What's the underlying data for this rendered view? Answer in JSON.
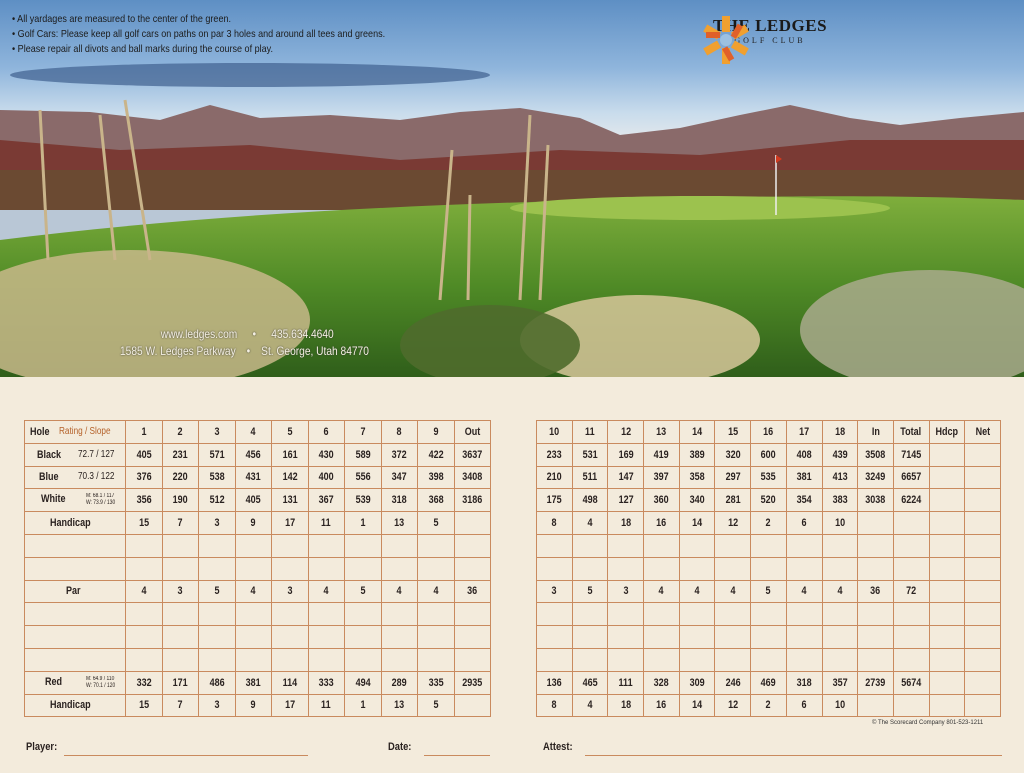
{
  "notes": [
    "All yardages are measured to the center of the green.",
    "Golf Cars:  Please keep all golf cars on paths on par 3 holes and around all tees and greens.",
    "Please repair all divots and ball marks during the course of play."
  ],
  "logo": {
    "name": "THE LEDGES",
    "subtitle": "GOLF CLUB"
  },
  "contact": {
    "website": "www.ledges.com",
    "phone": "435.634.4640",
    "address": "1585 W. Ledges Parkway",
    "city": "St. George, Utah  84770"
  },
  "colors": {
    "accent": "#b5622a",
    "grid": "#c98a5e",
    "paper": "#f3ebdc"
  },
  "front": {
    "header": {
      "label": "Hole",
      "rating": "Rating / Slope",
      "cells": [
        "1",
        "2",
        "3",
        "4",
        "5",
        "6",
        "7",
        "8",
        "9",
        "Out"
      ]
    },
    "rows": [
      {
        "label": "Black",
        "rating": "72.7 / 127",
        "cells": [
          "405",
          "231",
          "571",
          "456",
          "161",
          "430",
          "589",
          "372",
          "422",
          "3637"
        ]
      },
      {
        "label": "Blue",
        "rating": "70.3 / 122",
        "cells": [
          "376",
          "220",
          "538",
          "431",
          "142",
          "400",
          "556",
          "347",
          "398",
          "3408"
        ]
      },
      {
        "label": "White",
        "rating_m": "M: 68.1 / 117",
        "rating_w": "W: 73.9 / 130",
        "cells": [
          "356",
          "190",
          "512",
          "405",
          "131",
          "367",
          "539",
          "318",
          "368",
          "3186"
        ]
      },
      {
        "label": "Handicap",
        "cells": [
          "15",
          "7",
          "3",
          "9",
          "17",
          "11",
          "1",
          "13",
          "5",
          ""
        ]
      },
      {
        "label": "",
        "cells": [
          "",
          "",
          "",
          "",
          "",
          "",
          "",
          "",
          "",
          ""
        ]
      },
      {
        "label": "",
        "cells": [
          "",
          "",
          "",
          "",
          "",
          "",
          "",
          "",
          "",
          ""
        ]
      },
      {
        "label": "Par",
        "par": true,
        "cells": [
          "4",
          "3",
          "5",
          "4",
          "3",
          "4",
          "5",
          "4",
          "4",
          "36"
        ]
      },
      {
        "label": "",
        "cells": [
          "",
          "",
          "",
          "",
          "",
          "",
          "",
          "",
          "",
          ""
        ]
      },
      {
        "label": "",
        "cells": [
          "",
          "",
          "",
          "",
          "",
          "",
          "",
          "",
          "",
          ""
        ]
      },
      {
        "label": "",
        "cells": [
          "",
          "",
          "",
          "",
          "",
          "",
          "",
          "",
          "",
          ""
        ]
      },
      {
        "label": "Red",
        "rating_m": "M: 64.9 / 110",
        "rating_w": "W: 70.1 / 120",
        "cells": [
          "332",
          "171",
          "486",
          "381",
          "114",
          "333",
          "494",
          "289",
          "335",
          "2935"
        ]
      },
      {
        "label": "Handicap",
        "cells": [
          "15",
          "7",
          "3",
          "9",
          "17",
          "11",
          "1",
          "13",
          "5",
          ""
        ]
      }
    ]
  },
  "back": {
    "header": {
      "cells": [
        "10",
        "11",
        "12",
        "13",
        "14",
        "15",
        "16",
        "17",
        "18",
        "In",
        "Total",
        "Hdcp",
        "Net"
      ]
    },
    "rows": [
      {
        "cells": [
          "233",
          "531",
          "169",
          "419",
          "389",
          "320",
          "600",
          "408",
          "439",
          "3508",
          "7145",
          "",
          ""
        ]
      },
      {
        "cells": [
          "210",
          "511",
          "147",
          "397",
          "358",
          "297",
          "535",
          "381",
          "413",
          "3249",
          "6657",
          "",
          ""
        ]
      },
      {
        "cells": [
          "175",
          "498",
          "127",
          "360",
          "340",
          "281",
          "520",
          "354",
          "383",
          "3038",
          "6224",
          "",
          ""
        ]
      },
      {
        "cells": [
          "8",
          "4",
          "18",
          "16",
          "14",
          "12",
          "2",
          "6",
          "10",
          "",
          "",
          "",
          ""
        ]
      },
      {
        "cells": [
          "",
          "",
          "",
          "",
          "",
          "",
          "",
          "",
          "",
          "",
          "",
          "",
          ""
        ]
      },
      {
        "cells": [
          "",
          "",
          "",
          "",
          "",
          "",
          "",
          "",
          "",
          "",
          "",
          "",
          ""
        ]
      },
      {
        "par": true,
        "cells": [
          "3",
          "5",
          "3",
          "4",
          "4",
          "4",
          "5",
          "4",
          "4",
          "36",
          "72",
          "",
          ""
        ]
      },
      {
        "cells": [
          "",
          "",
          "",
          "",
          "",
          "",
          "",
          "",
          "",
          "",
          "",
          "",
          ""
        ]
      },
      {
        "cells": [
          "",
          "",
          "",
          "",
          "",
          "",
          "",
          "",
          "",
          "",
          "",
          "",
          ""
        ]
      },
      {
        "cells": [
          "",
          "",
          "",
          "",
          "",
          "",
          "",
          "",
          "",
          "",
          "",
          "",
          ""
        ]
      },
      {
        "cells": [
          "136",
          "465",
          "111",
          "328",
          "309",
          "246",
          "469",
          "318",
          "357",
          "2739",
          "5674",
          "",
          ""
        ]
      },
      {
        "cells": [
          "8",
          "4",
          "18",
          "16",
          "14",
          "12",
          "2",
          "6",
          "10",
          "",
          "",
          "",
          ""
        ]
      }
    ]
  },
  "footer": {
    "player": "Player:",
    "date": "Date:",
    "attest": "Attest:",
    "copyright": "© The Scorecard Company   801-523-1211"
  }
}
